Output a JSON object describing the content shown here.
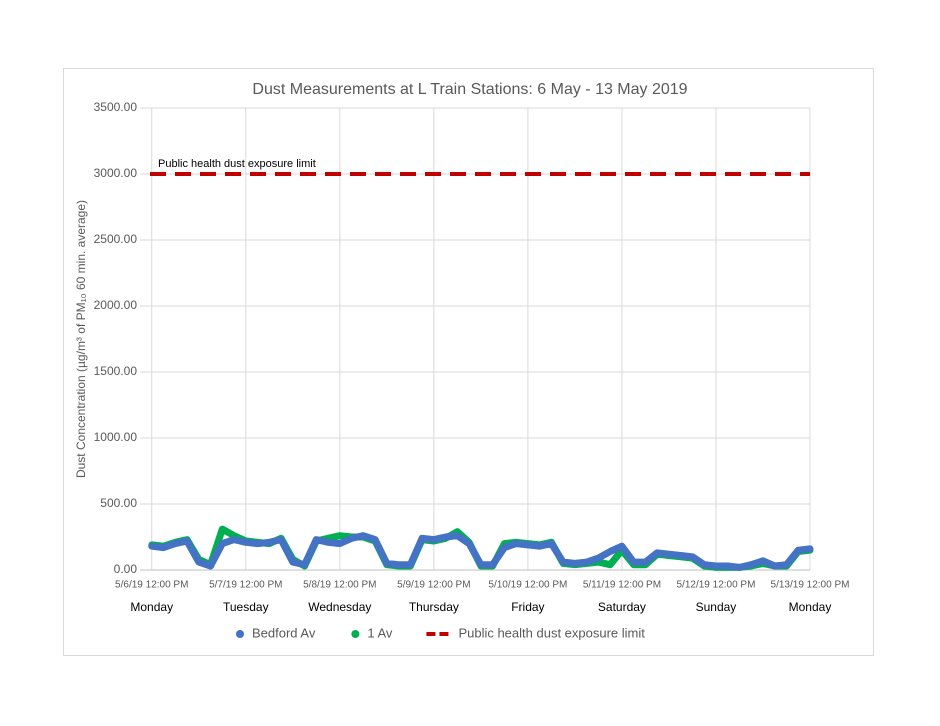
{
  "chart_data": {
    "type": "line",
    "title": "Dust Measurements at L Train Stations: 6 May - 13 May 2019",
    "y_label": "Dust Concentration (µg/m³ of PM₁₀ 60 min. average)",
    "x": [
      "5/6/19 12:00 PM",
      "5/6/19 3:00 PM",
      "5/6/19 6:00 PM",
      "5/6/19 9:00 PM",
      "5/7/19 12:00 AM",
      "5/7/19 3:00 AM",
      "5/7/19 6:00 AM",
      "5/7/19 9:00 AM",
      "5/7/19 12:00 PM",
      "5/7/19 3:00 PM",
      "5/7/19 6:00 PM",
      "5/7/19 9:00 PM",
      "5/8/19 12:00 AM",
      "5/8/19 3:00 AM",
      "5/8/19 6:00 AM",
      "5/8/19 9:00 AM",
      "5/8/19 12:00 PM",
      "5/8/19 3:00 PM",
      "5/8/19 6:00 PM",
      "5/8/19 9:00 PM",
      "5/9/19 12:00 AM",
      "5/9/19 3:00 AM",
      "5/9/19 6:00 AM",
      "5/9/19 9:00 AM",
      "5/9/19 12:00 PM",
      "5/9/19 3:00 PM",
      "5/9/19 6:00 PM",
      "5/9/19 9:00 PM",
      "5/10/19 12:00 AM",
      "5/10/19 3:00 AM",
      "5/10/19 6:00 AM",
      "5/10/19 9:00 AM",
      "5/10/19 12:00 PM",
      "5/10/19 3:00 PM",
      "5/10/19 6:00 PM",
      "5/10/19 9:00 PM",
      "5/11/19 12:00 AM",
      "5/11/19 3:00 AM",
      "5/11/19 6:00 AM",
      "5/11/19 9:00 AM",
      "5/11/19 12:00 PM",
      "5/11/19 3:00 PM",
      "5/11/19 6:00 PM",
      "5/11/19 9:00 PM",
      "5/12/19 12:00 AM",
      "5/12/19 3:00 AM",
      "5/12/19 6:00 AM",
      "5/12/19 9:00 AM",
      "5/12/19 12:00 PM",
      "5/12/19 3:00 PM",
      "5/12/19 6:00 PM",
      "5/12/19 9:00 PM",
      "5/13/19 12:00 AM",
      "5/13/19 3:00 AM",
      "5/13/19 6:00 AM",
      "5/13/19 9:00 AM",
      "5/13/19 12:00 PM"
    ],
    "series": [
      {
        "name": "Bedford Av",
        "color": "#4472c4",
        "values": [
          180,
          170,
          200,
          220,
          60,
          30,
          200,
          230,
          210,
          200,
          210,
          230,
          60,
          40,
          230,
          210,
          200,
          240,
          260,
          230,
          50,
          40,
          40,
          240,
          230,
          250,
          260,
          200,
          40,
          40,
          170,
          200,
          190,
          180,
          200,
          60,
          50,
          60,
          90,
          140,
          180,
          60,
          60,
          130,
          120,
          110,
          100,
          40,
          30,
          30,
          20,
          40,
          70,
          30,
          40,
          150,
          160
        ]
      },
      {
        "name": "1 Av",
        "color": "#00b050",
        "values": [
          190,
          180,
          210,
          230,
          80,
          40,
          310,
          260,
          220,
          210,
          200,
          240,
          80,
          30,
          220,
          240,
          260,
          250,
          250,
          220,
          40,
          30,
          30,
          230,
          220,
          240,
          290,
          210,
          30,
          30,
          200,
          210,
          200,
          190,
          210,
          50,
          40,
          50,
          60,
          40,
          150,
          40,
          40,
          120,
          110,
          100,
          90,
          30,
          20,
          20,
          20,
          30,
          50,
          30,
          30,
          140,
          150
        ]
      }
    ],
    "limit": {
      "name": "Public health dust exposure limit",
      "value": 3000,
      "color": "#c00000"
    },
    "annotation": "Public health dust exposure limit",
    "xlim": [
      "5/6/19 9:00 AM",
      "5/13/19 12:00 PM"
    ],
    "xticks": [
      "5/6/19 12:00 PM",
      "5/7/19 12:00 PM",
      "5/8/19 12:00 PM",
      "5/9/19 12:00 PM",
      "5/10/19 12:00 PM",
      "5/11/19 12:00 PM",
      "5/12/19 12:00 PM",
      "5/13/19 12:00 PM"
    ],
    "xtick_days": [
      "Monday",
      "Tuesday",
      "Wednesday",
      "Thursday",
      "Friday",
      "Saturday",
      "Sunday",
      "Monday"
    ],
    "ylim": [
      0,
      3500
    ],
    "yticks": [
      {
        "value": 0,
        "label": "0.00"
      },
      {
        "value": 500,
        "label": "500.00"
      },
      {
        "value": 1000,
        "label": "1000.00"
      },
      {
        "value": 1500,
        "label": "1500.00"
      },
      {
        "value": 2000,
        "label": "2000.00"
      },
      {
        "value": 2500,
        "label": "2500.00"
      },
      {
        "value": 3000,
        "label": "3000.00"
      },
      {
        "value": 3500,
        "label": "3500.00"
      }
    ],
    "grid": true,
    "legend": "bottom"
  }
}
